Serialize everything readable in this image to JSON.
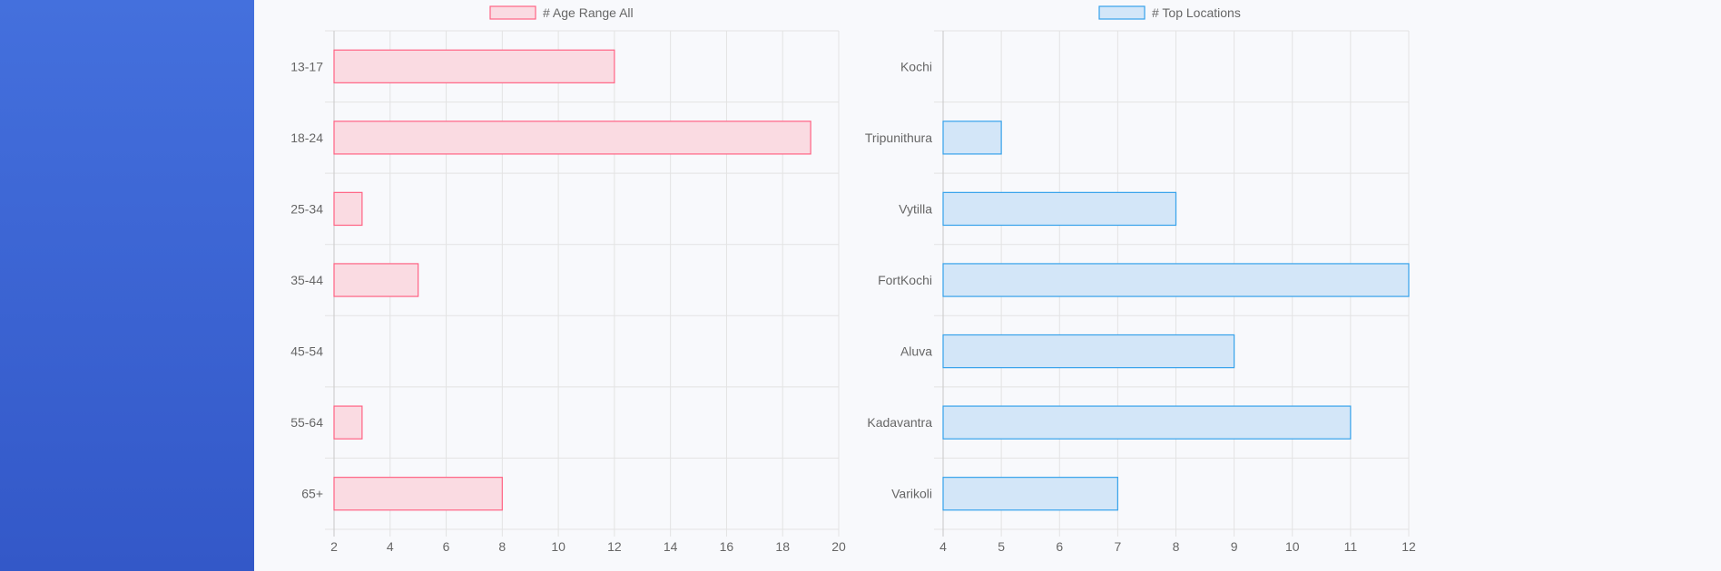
{
  "chart_data": [
    {
      "type": "bar",
      "orientation": "horizontal",
      "categories": [
        "13-17",
        "18-24",
        "25-34",
        "35-44",
        "45-54",
        "55-64",
        "65+"
      ],
      "series": [
        {
          "name": "# Age Range All",
          "values": [
            12,
            19,
            3,
            5,
            2,
            3,
            8
          ]
        }
      ],
      "xlim": [
        2,
        20
      ],
      "xticks": [
        "2",
        "4",
        "6",
        "8",
        "10",
        "12",
        "14",
        "16",
        "18",
        "20"
      ],
      "grid": true,
      "legend": "top",
      "colors": {
        "fill": "#fadbe2",
        "stroke": "#ff6384"
      }
    },
    {
      "type": "bar",
      "orientation": "horizontal",
      "categories": [
        "Kochi",
        "Tripunithura",
        "Vytilla",
        "FortKochi",
        "Aluva",
        "Kadavantra",
        "Varikoli"
      ],
      "series": [
        {
          "name": "# Top Locations",
          "values": [
            4,
            5,
            8,
            12,
            9,
            11,
            7
          ]
        }
      ],
      "xlim": [
        4,
        12
      ],
      "xticks": [
        "4",
        "5",
        "6",
        "7",
        "8",
        "9",
        "10",
        "11",
        "12"
      ],
      "grid": true,
      "legend": "top",
      "colors": {
        "fill": "#d3e6f8",
        "stroke": "#36a2eb"
      }
    }
  ]
}
